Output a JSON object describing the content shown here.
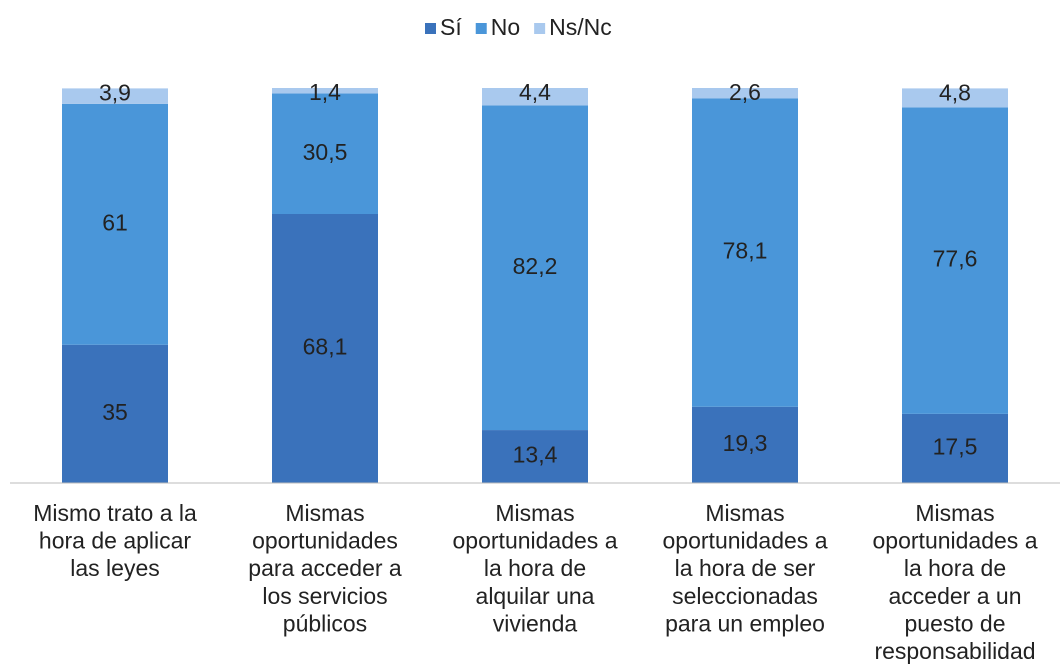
{
  "chart_data": {
    "type": "stacked_bar",
    "categories": [
      "Mismo trato a la\nhora de aplicar\nlas leyes",
      "Mismas\noportunidades\npara acceder a\nlos servicios\npúblicos",
      "Mismas\noportunidades a\nla hora de\nalquilar una\nvivienda",
      "Mismas\noportunidades a\nla hora de ser\nseleccionadas\npara un empleo",
      "Mismas\noportunidades a\nla hora de\nacceder a un\npuesto de\nresponsabilidad"
    ],
    "series": [
      {
        "name": "Sí",
        "color": "#3a72bb",
        "values": [
          35,
          68.1,
          13.4,
          19.3,
          17.5
        ],
        "value_labels": [
          "35",
          "68,1",
          "13,4",
          "19,3",
          "17,5"
        ]
      },
      {
        "name": "No",
        "color": "#4a96d9",
        "values": [
          61,
          30.5,
          82.2,
          78.1,
          77.6
        ],
        "value_labels": [
          "61",
          "30,5",
          "82,2",
          "78,1",
          "77,6"
        ]
      },
      {
        "name": "Ns/Nc",
        "color": "#a9c9ee",
        "values": [
          3.9,
          1.4,
          4.4,
          2.6,
          4.8
        ],
        "value_labels": [
          "3,9",
          "1,4",
          "4,4",
          "2,6",
          "4,8"
        ]
      }
    ],
    "ylim": [
      0,
      100
    ]
  }
}
